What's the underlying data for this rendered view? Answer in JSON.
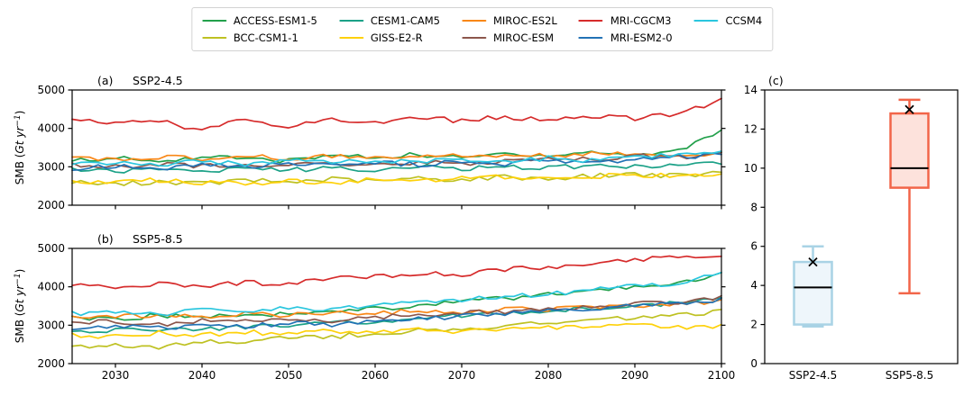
{
  "figure": {
    "background": "#ffffff"
  },
  "legend": {
    "items": [
      {
        "label": "ACCESS-ESM1-5",
        "color": "#22a04b"
      },
      {
        "label": "BCC-CSM1-1",
        "color": "#bec122"
      },
      {
        "label": "CESM1-CAM5",
        "color": "#1ba187"
      },
      {
        "label": "GISS-E2-R",
        "color": "#fed10a"
      },
      {
        "label": "MIROC-ES2L",
        "color": "#f98716"
      },
      {
        "label": "MIROC-ESM",
        "color": "#8c564b"
      },
      {
        "label": "MRI-CGCM3",
        "color": "#d62b2b"
      },
      {
        "label": "MRI-ESM2-0",
        "color": "#2272b5"
      },
      {
        "label": "CCSM4",
        "color": "#2ac6de"
      }
    ]
  },
  "ylabel": {
    "prefix": "SMB (",
    "unit": "Gt yr",
    "exponent": "−1",
    "suffix": ")"
  },
  "chart_data": [
    {
      "id": "a",
      "type": "line",
      "panel_label": "(a)",
      "title": "SSP2-4.5",
      "xlim": [
        2025,
        2100
      ],
      "ylim": [
        2000,
        5000
      ],
      "xticks": [
        2030,
        2040,
        2050,
        2060,
        2070,
        2080,
        2090,
        2100
      ],
      "yticks": [
        2000,
        3000,
        4000,
        5000
      ],
      "show_xtick_labels": false,
      "grid": false,
      "anchor_years": [
        2025,
        2030,
        2035,
        2040,
        2045,
        2050,
        2055,
        2060,
        2065,
        2070,
        2075,
        2080,
        2085,
        2090,
        2095,
        2100
      ],
      "jitter": 65,
      "series": [
        {
          "name": "ACCESS-ESM1-5",
          "values": [
            3180,
            3240,
            3120,
            3280,
            3200,
            3160,
            3300,
            3240,
            3320,
            3220,
            3350,
            3300,
            3380,
            3300,
            3420,
            3960
          ]
        },
        {
          "name": "BCC-CSM1-1",
          "values": [
            2600,
            2540,
            2620,
            2560,
            2650,
            2600,
            2680,
            2620,
            2700,
            2660,
            2740,
            2690,
            2760,
            2820,
            2760,
            2840
          ]
        },
        {
          "name": "CESM1-CAM5",
          "values": [
            2940,
            2880,
            2950,
            2900,
            2960,
            2910,
            2980,
            2930,
            3000,
            2950,
            3010,
            2970,
            3030,
            3000,
            3050,
            3090
          ]
        },
        {
          "name": "GISS-E2-R",
          "values": [
            2640,
            2580,
            2660,
            2600,
            2550,
            2630,
            2580,
            2660,
            2610,
            2690,
            2730,
            2670,
            2750,
            2800,
            2740,
            2800
          ]
        },
        {
          "name": "MIROC-ES2L",
          "values": [
            3230,
            3180,
            3260,
            3200,
            3270,
            3220,
            3290,
            3240,
            3310,
            3260,
            3330,
            3290,
            3360,
            3310,
            3290,
            3350
          ]
        },
        {
          "name": "MIROC-ESM",
          "values": [
            3040,
            2990,
            3060,
            3010,
            3080,
            3030,
            3100,
            3050,
            3120,
            3070,
            3160,
            3260,
            3170,
            3310,
            3240,
            3390
          ]
        },
        {
          "name": "MRI-CGCM3",
          "values": [
            4210,
            4130,
            4180,
            3960,
            4230,
            4060,
            4250,
            4170,
            4290,
            4190,
            4310,
            4210,
            4330,
            4260,
            4390,
            4740
          ]
        },
        {
          "name": "MRI-ESM2-0",
          "values": [
            2970,
            3030,
            2950,
            3050,
            2990,
            3080,
            3010,
            3100,
            3050,
            3140,
            3070,
            3160,
            3110,
            3210,
            3270,
            3310
          ]
        },
        {
          "name": "CCSM4",
          "values": [
            3070,
            3130,
            3030,
            3150,
            3070,
            3170,
            3090,
            3190,
            3110,
            3210,
            3130,
            3230,
            3150,
            3250,
            3310,
            3390
          ]
        }
      ]
    },
    {
      "id": "b",
      "type": "line",
      "panel_label": "(b)",
      "title": "SSP5-8.5",
      "xlim": [
        2025,
        2100
      ],
      "ylim": [
        2000,
        5000
      ],
      "xticks": [
        2030,
        2040,
        2050,
        2060,
        2070,
        2080,
        2090,
        2100
      ],
      "yticks": [
        2000,
        3000,
        4000,
        5000
      ],
      "show_xtick_labels": true,
      "grid": false,
      "anchor_years": [
        2025,
        2030,
        2035,
        2040,
        2045,
        2050,
        2055,
        2060,
        2065,
        2070,
        2075,
        2080,
        2085,
        2090,
        2095,
        2100
      ],
      "jitter": 65,
      "series": [
        {
          "name": "ACCESS-ESM1-5",
          "values": [
            3210,
            3150,
            3260,
            3220,
            3310,
            3280,
            3390,
            3430,
            3510,
            3610,
            3700,
            3790,
            3900,
            4010,
            4110,
            4310
          ]
        },
        {
          "name": "BCC-CSM1-1",
          "values": [
            2400,
            2490,
            2440,
            2560,
            2600,
            2660,
            2700,
            2790,
            2850,
            2910,
            2980,
            3060,
            3100,
            3210,
            3280,
            3360
          ]
        },
        {
          "name": "CESM1-CAM5",
          "values": [
            2790,
            2860,
            2900,
            2870,
            2950,
            3000,
            3060,
            3100,
            3210,
            3250,
            3310,
            3390,
            3420,
            3510,
            3580,
            3660
          ]
        },
        {
          "name": "GISS-E2-R",
          "values": [
            2760,
            2700,
            2790,
            2730,
            2820,
            2770,
            2850,
            2800,
            2880,
            2830,
            2900,
            2930,
            2960,
            2990,
            2940,
            2960
          ]
        },
        {
          "name": "MIROC-ES2L",
          "values": [
            3260,
            3200,
            3290,
            3230,
            3300,
            3250,
            3330,
            3290,
            3390,
            3330,
            3430,
            3390,
            3480,
            3510,
            3550,
            3610
          ]
        },
        {
          "name": "MIROC-ESM",
          "values": [
            3060,
            3110,
            3020,
            3130,
            3080,
            3160,
            3120,
            3210,
            3260,
            3310,
            3360,
            3430,
            3490,
            3560,
            3610,
            3710
          ]
        },
        {
          "name": "MRI-CGCM3",
          "values": [
            4060,
            4000,
            4090,
            4040,
            4110,
            4080,
            4210,
            4260,
            4360,
            4300,
            4460,
            4510,
            4610,
            4710,
            4760,
            4790
          ]
        },
        {
          "name": "MRI-ESM2-0",
          "values": [
            2910,
            2960,
            2920,
            3010,
            2980,
            3060,
            3020,
            3110,
            3160,
            3230,
            3290,
            3360,
            3410,
            3510,
            3560,
            3660
          ]
        },
        {
          "name": "CCSM4",
          "values": [
            3310,
            3360,
            3280,
            3410,
            3350,
            3460,
            3400,
            3510,
            3610,
            3660,
            3760,
            3810,
            3910,
            4010,
            4110,
            4360
          ]
        }
      ]
    },
    {
      "id": "c",
      "type": "box",
      "panel_label": "(c)",
      "ylim": [
        0,
        14
      ],
      "yticks": [
        0,
        2,
        4,
        6,
        8,
        10,
        12,
        14
      ],
      "categories": [
        "SSP2-4.5",
        "SSP5-8.5"
      ],
      "boxes": [
        {
          "label": "SSP2-4.5",
          "whisker_low": 1.9,
          "q1": 2.0,
          "median": 3.9,
          "q3": 5.2,
          "whisker_high": 6.0,
          "mean": 5.2,
          "edge_color": "#a9d3e5",
          "fill_color": "#eef6fb"
        },
        {
          "label": "SSP5-8.5",
          "whisker_low": 3.6,
          "q1": 9.0,
          "median": 10.0,
          "q3": 12.8,
          "whisker_high": 13.5,
          "mean": 13.0,
          "edge_color": "#f26549",
          "fill_color": "#fde2dc"
        }
      ],
      "mean_marker": "x",
      "median_color": "#000000"
    }
  ]
}
